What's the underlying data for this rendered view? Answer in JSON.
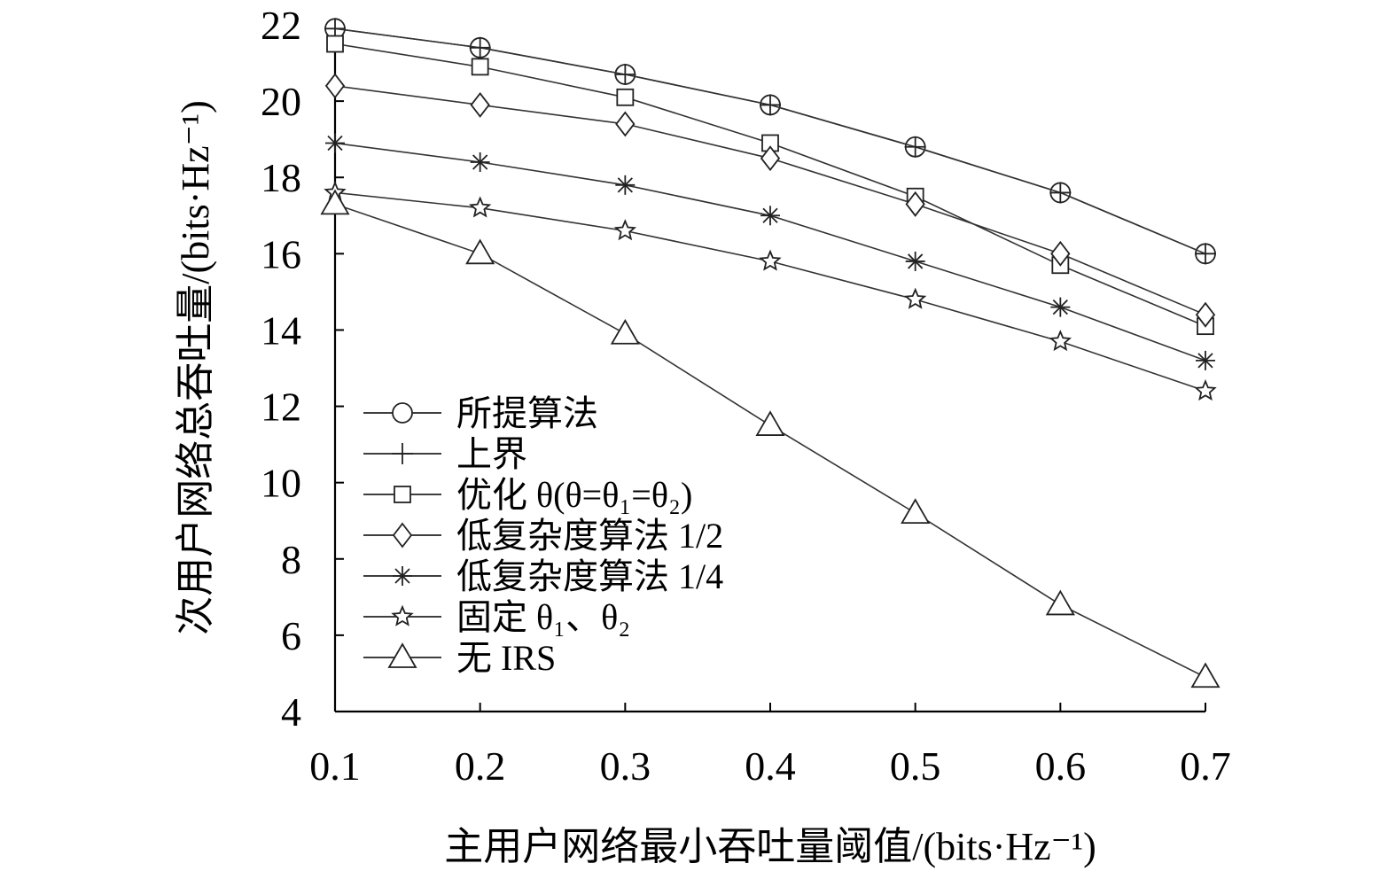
{
  "chart_data": {
    "type": "line",
    "title": "",
    "xlabel": "主用户网络最小吞吐量阈值/(bits·Hz⁻¹)",
    "ylabel": "次用户网络总吞吐量/(bits·Hz⁻¹)",
    "xlim": [
      0.1,
      0.7
    ],
    "ylim": [
      4,
      22
    ],
    "x": [
      0.1,
      0.2,
      0.3,
      0.4,
      0.5,
      0.6,
      0.7
    ],
    "x_ticks": [
      "0.1",
      "0.2",
      "0.3",
      "0.4",
      "0.5",
      "0.6",
      "0.7"
    ],
    "y_ticks": [
      4,
      6,
      8,
      10,
      12,
      14,
      16,
      18,
      20,
      22
    ],
    "grid": false,
    "legend_position": "lower-left",
    "series": [
      {
        "name": "所提算法",
        "marker": "circle",
        "values": [
          21.9,
          21.4,
          20.7,
          19.9,
          18.8,
          17.6,
          16.0
        ]
      },
      {
        "name": "上界",
        "marker": "plus",
        "values": [
          21.9,
          21.4,
          20.7,
          19.9,
          18.8,
          17.6,
          16.0
        ]
      },
      {
        "name": "优化 θ(θ=θ₁=θ₂)",
        "marker": "square",
        "values": [
          21.5,
          20.9,
          20.1,
          18.9,
          17.5,
          15.7,
          14.1
        ]
      },
      {
        "name": "低复杂度算法 1/2",
        "marker": "diamond",
        "values": [
          20.4,
          19.9,
          19.4,
          18.5,
          17.3,
          16.0,
          14.4
        ]
      },
      {
        "name": "低复杂度算法 1/4",
        "marker": "asterisk",
        "values": [
          18.9,
          18.4,
          17.8,
          17.0,
          15.8,
          14.6,
          13.2
        ]
      },
      {
        "name": "固定 θ₁、θ₂",
        "marker": "star",
        "values": [
          17.6,
          17.2,
          16.6,
          15.8,
          14.8,
          13.7,
          12.4
        ]
      },
      {
        "name": "无 IRS",
        "marker": "triangle",
        "values": [
          17.3,
          16.0,
          13.9,
          11.5,
          9.2,
          6.8,
          4.9
        ]
      }
    ]
  }
}
